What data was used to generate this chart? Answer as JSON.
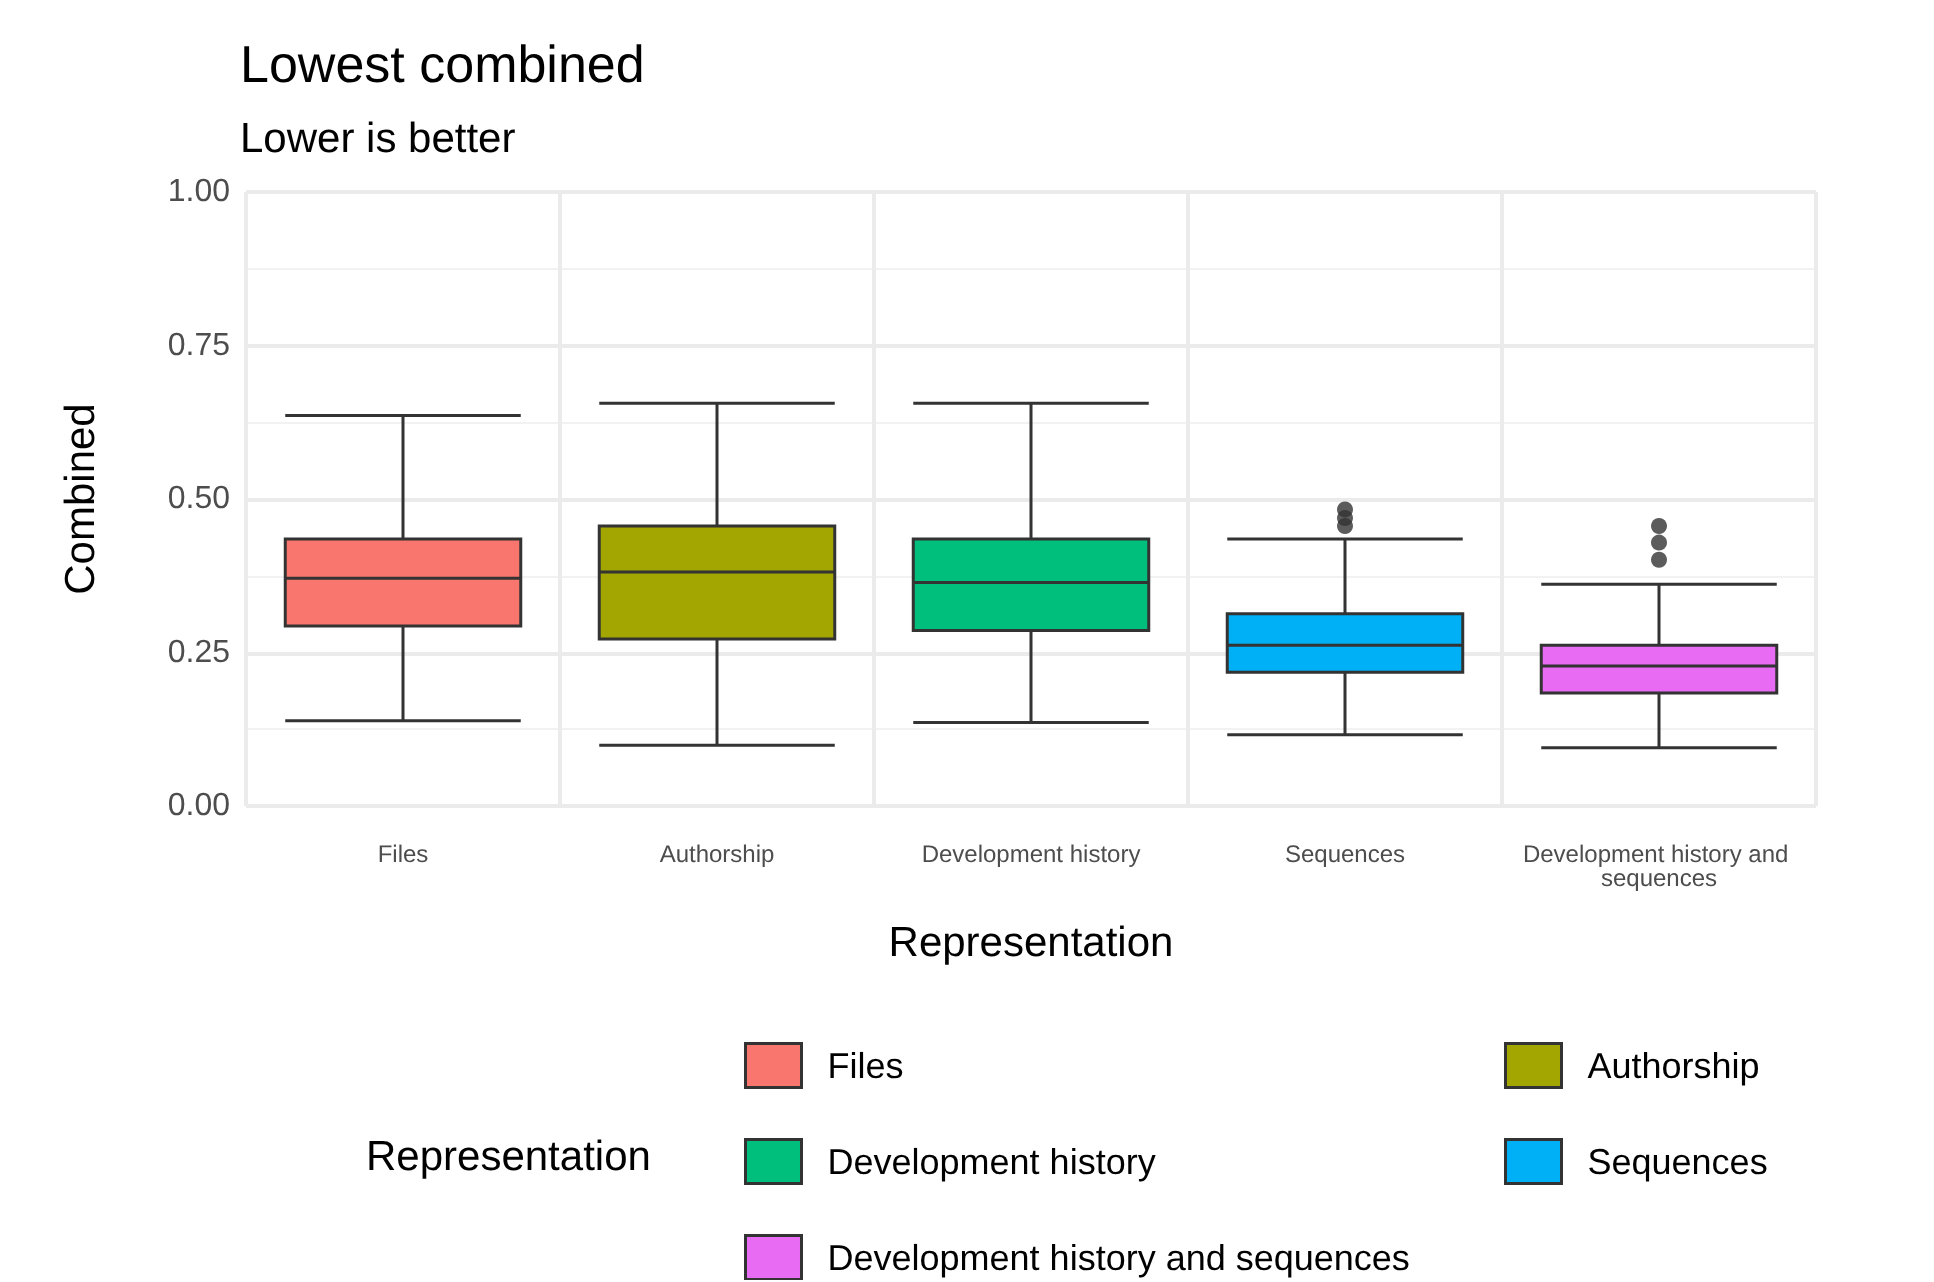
{
  "chart_data": {
    "type": "box",
    "title": "Lowest combined",
    "subtitle": "Lower is better",
    "xlabel": "Representation",
    "ylabel": "Combined",
    "legend_title": "Representation",
    "categories": [
      "Files",
      "Authorship",
      "Development history",
      "Sequences",
      "Development history and sequences"
    ],
    "series": [
      {
        "name": "Files",
        "color": "#f8766d",
        "boxes": [
          {
            "low": 0.139,
            "q1": 0.293,
            "median": 0.371,
            "q3": 0.435,
            "high": 0.636
          },
          null,
          null,
          null,
          null
        ]
      },
      {
        "name": "Authorship",
        "color": "#a3a500",
        "boxes": [
          null,
          {
            "low": 0.099,
            "q1": 0.272,
            "median": 0.381,
            "q3": 0.456,
            "high": 0.656
          },
          null,
          null,
          null
        ]
      },
      {
        "name": "Development history",
        "color": "#00bf7d",
        "boxes": [
          null,
          null,
          {
            "low": 0.136,
            "q1": 0.286,
            "median": 0.364,
            "q3": 0.435,
            "high": 0.656
          },
          null,
          null
        ]
      },
      {
        "name": "Sequences",
        "color": "#00b0f6",
        "boxes": [
          null,
          null,
          null,
          {
            "low": 0.116,
            "q1": 0.218,
            "median": 0.262,
            "q3": 0.313,
            "high": 0.435,
            "outliers": [
              0.456,
              0.469,
              0.483
            ]
          },
          null
        ]
      },
      {
        "name": "Development history and sequences",
        "color": "#e76bf3",
        "boxes": [
          null,
          null,
          null,
          null,
          {
            "low": 0.095,
            "q1": 0.184,
            "median": 0.228,
            "q3": 0.262,
            "high": 0.361,
            "outliers": [
              0.401,
              0.429,
              0.456
            ]
          }
        ]
      }
    ],
    "ylim": [
      0,
      1
    ],
    "yticks": [
      {
        "value": 0,
        "label": "0.00"
      },
      0.25,
      {
        "value": 0.5,
        "label": "0.50"
      },
      0.75,
      {
        "value": 1,
        "label": "1.00"
      }
    ],
    "grid": true,
    "legend": "bottom"
  }
}
